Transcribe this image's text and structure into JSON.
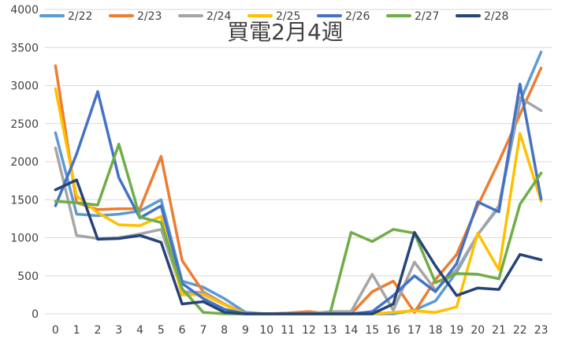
{
  "chart_data": {
    "type": "line",
    "title": "買電2月4週",
    "xlabel": "",
    "ylabel": "",
    "x": [
      "0",
      "1",
      "2",
      "3",
      "4",
      "5",
      "6",
      "7",
      "8",
      "9",
      "10",
      "11",
      "12",
      "13",
      "14",
      "15",
      "16",
      "17",
      "18",
      "19",
      "20",
      "21",
      "22",
      "23"
    ],
    "yticks": [
      "0",
      "500",
      "1000",
      "1500",
      "2000",
      "2500",
      "3000",
      "3500",
      "4000"
    ],
    "ylim": [
      0,
      4000
    ],
    "grid": true,
    "legend_position": "top",
    "series": [
      {
        "name": "2/22",
        "color": "#5B9BD5",
        "values": [
          2380,
          1310,
          1290,
          1310,
          1350,
          1500,
          430,
          350,
          200,
          20,
          0,
          0,
          0,
          0,
          0,
          0,
          0,
          50,
          170,
          550,
          1040,
          1400,
          2790,
          3440
        ]
      },
      {
        "name": "2/23",
        "color": "#ED7D31",
        "values": [
          3260,
          1460,
          1370,
          1380,
          1380,
          2070,
          700,
          290,
          130,
          0,
          0,
          10,
          30,
          0,
          0,
          290,
          430,
          20,
          450,
          780,
          1420,
          2000,
          2620,
          3230
        ]
      },
      {
        "name": "2/24",
        "color": "#A5A5A5",
        "values": [
          2180,
          1030,
          990,
          1000,
          1050,
          1110,
          290,
          280,
          120,
          0,
          0,
          0,
          0,
          30,
          30,
          520,
          50,
          680,
          310,
          580,
          1040,
          1420,
          2840,
          2670
        ]
      },
      {
        "name": "2/25",
        "color": "#FFC000",
        "values": [
          2960,
          1550,
          1330,
          1170,
          1160,
          1280,
          250,
          250,
          120,
          0,
          0,
          0,
          0,
          0,
          0,
          0,
          20,
          40,
          20,
          90,
          1060,
          580,
          2370,
          1480
        ]
      },
      {
        "name": "2/26",
        "color": "#4472C4",
        "values": [
          1420,
          2100,
          2920,
          1790,
          1260,
          1420,
          400,
          200,
          60,
          0,
          0,
          0,
          0,
          0,
          0,
          30,
          240,
          500,
          290,
          660,
          1470,
          1340,
          3020,
          1510
        ]
      },
      {
        "name": "2/27",
        "color": "#70AD47",
        "values": [
          1480,
          1460,
          1430,
          2230,
          1270,
          1200,
          330,
          20,
          0,
          0,
          0,
          0,
          0,
          0,
          1070,
          950,
          1110,
          1060,
          410,
          530,
          520,
          460,
          1440,
          1850
        ]
      },
      {
        "name": "2/28",
        "color": "#264478",
        "values": [
          1630,
          1760,
          980,
          990,
          1030,
          940,
          130,
          160,
          20,
          0,
          0,
          0,
          0,
          0,
          0,
          0,
          130,
          1070,
          630,
          240,
          340,
          320,
          780,
          710
        ]
      }
    ]
  }
}
